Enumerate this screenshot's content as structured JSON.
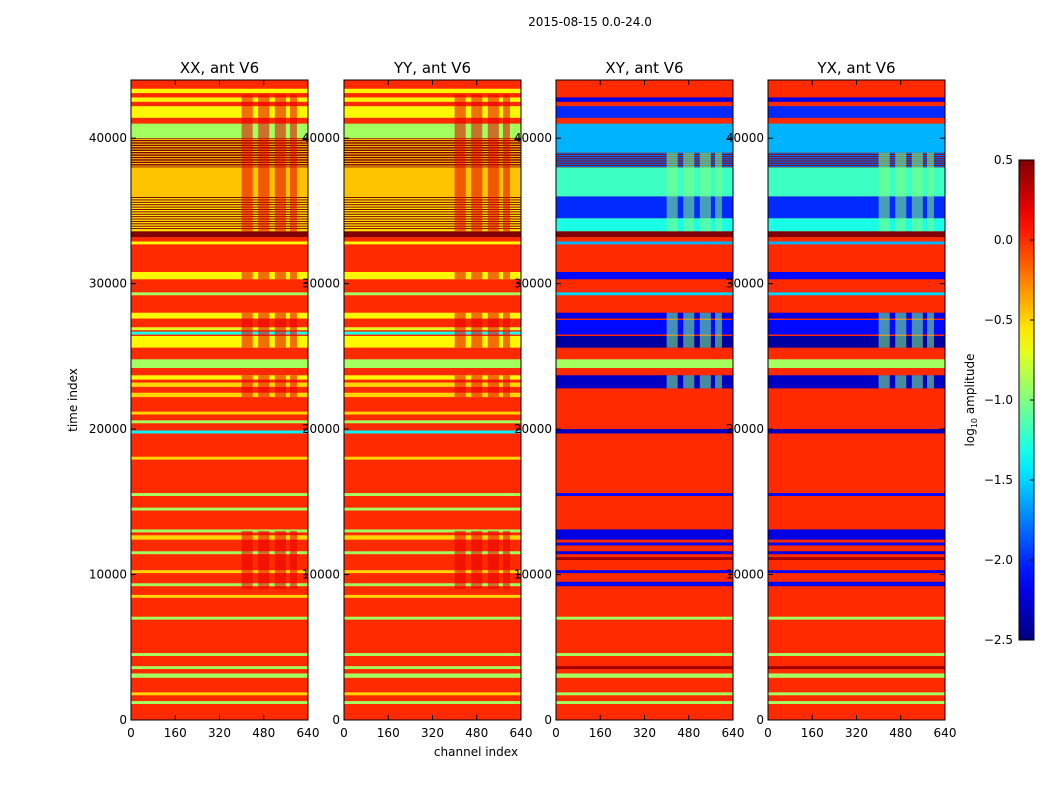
{
  "chart_data": {
    "type": "heatmap",
    "title": "2015-08-15 0.0-24.0",
    "xlabel": "channel index",
    "ylabel": "time index",
    "xlim": [
      0,
      640
    ],
    "ylim": [
      0,
      44000
    ],
    "xticks": [
      "0",
      "160",
      "320",
      "480",
      "640"
    ],
    "yticks": [
      "0",
      "10000",
      "20000",
      "30000",
      "40000"
    ],
    "background_value": 0.0,
    "colorbar": {
      "colormap": "jet",
      "range": [
        -2.5,
        0.5
      ],
      "ticks": [
        "0.5",
        "0.0",
        "−0.5",
        "−1.0",
        "−1.5",
        "−2.0",
        "−2.5"
      ],
      "tick_values": [
        0.5,
        0.0,
        -0.5,
        -1.0,
        -1.5,
        -2.0,
        -2.5
      ],
      "label": {
        "base": "log",
        "sub": "10",
        "rest": " amplitude"
      }
    },
    "band_sets": {
      "parallel": {
        "bands": [
          [
            1100,
            1300,
            -0.9
          ],
          [
            1700,
            1900,
            -0.5
          ],
          [
            2900,
            3200,
            -0.9
          ],
          [
            3500,
            3700,
            -0.9
          ],
          [
            4400,
            4600,
            -0.9
          ],
          [
            6900,
            7100,
            -0.9
          ],
          [
            8400,
            8600,
            -0.5
          ],
          [
            9200,
            9400,
            -0.9
          ],
          [
            10100,
            10300,
            -0.5
          ],
          [
            11400,
            11600,
            -0.9
          ],
          [
            12400,
            12700,
            -0.5
          ],
          [
            12900,
            13100,
            -0.9
          ],
          [
            14400,
            14600,
            -0.9
          ],
          [
            15400,
            15600,
            -0.9
          ],
          [
            17900,
            18100,
            -0.5
          ],
          [
            19700,
            19900,
            -1.4
          ],
          [
            20400,
            20600,
            -0.9
          ],
          [
            21000,
            21200,
            -0.5
          ],
          [
            22200,
            22500,
            -0.5
          ],
          [
            22900,
            23200,
            -0.5
          ],
          [
            23400,
            23700,
            -0.6
          ],
          [
            24200,
            24800,
            -0.9
          ],
          [
            25600,
            26400,
            -0.6
          ],
          [
            26500,
            26700,
            -1.3
          ],
          [
            26800,
            27000,
            -0.7
          ],
          [
            27600,
            28000,
            -0.6
          ],
          [
            29200,
            29400,
            -0.9
          ],
          [
            30300,
            30800,
            -0.6
          ],
          [
            32700,
            32900,
            -0.6
          ],
          [
            33200,
            33600,
            0.5
          ],
          [
            33600,
            36000,
            -0.55
          ],
          [
            36000,
            38000,
            -0.45
          ],
          [
            38000,
            40000,
            0.5
          ],
          [
            40000,
            41000,
            -0.9
          ],
          [
            41400,
            42200,
            -0.6
          ],
          [
            42500,
            42800,
            -0.6
          ],
          [
            43100,
            43400,
            -0.6
          ]
        ],
        "striped": [
          [
            33700,
            36000,
            14,
            0.5
          ],
          [
            38000,
            40000,
            12,
            -0.5
          ]
        ],
        "rfi_channels": [
          [
            400,
            440
          ],
          [
            460,
            500
          ],
          [
            520,
            560
          ],
          [
            575,
            600
          ]
        ],
        "rfi_times": [
          [
            25600,
            28000
          ],
          [
            30300,
            30800
          ],
          [
            33600,
            43000
          ],
          [
            22200,
            23700
          ],
          [
            9000,
            13000
          ]
        ],
        "rfi_value": 0.2
      },
      "cross": {
        "bands": [
          [
            1100,
            1300,
            -0.9
          ],
          [
            1700,
            1900,
            -0.9
          ],
          [
            2900,
            3200,
            -0.9
          ],
          [
            3500,
            3700,
            0.4
          ],
          [
            4400,
            4600,
            -0.9
          ],
          [
            6900,
            7100,
            -0.9
          ],
          [
            9200,
            9500,
            -2.1
          ],
          [
            10100,
            10300,
            -2.1
          ],
          [
            11000,
            11200,
            0.4
          ],
          [
            11400,
            11600,
            -2.2
          ],
          [
            12000,
            12200,
            -2.1
          ],
          [
            12400,
            13100,
            -2.2
          ],
          [
            15400,
            15600,
            -2.1
          ],
          [
            19700,
            20000,
            -2.3
          ],
          [
            22800,
            23700,
            -2.3
          ],
          [
            24200,
            24800,
            -0.9
          ],
          [
            25600,
            26400,
            -2.4
          ],
          [
            26500,
            27500,
            -2.1
          ],
          [
            27600,
            28000,
            -2.2
          ],
          [
            29200,
            29400,
            -1.5
          ],
          [
            30300,
            30800,
            -2.1
          ],
          [
            32700,
            32900,
            -1.6
          ],
          [
            33200,
            33600,
            0.5
          ],
          [
            33600,
            34500,
            -1.3
          ],
          [
            34500,
            36000,
            -2.0
          ],
          [
            36000,
            38000,
            -1.2
          ],
          [
            38000,
            39000,
            0.45
          ],
          [
            39000,
            41000,
            -1.6
          ],
          [
            41400,
            42200,
            -2.0
          ],
          [
            42500,
            42800,
            -2.2
          ]
        ],
        "striped": [
          [
            38000,
            39000,
            8,
            -1.8
          ]
        ],
        "rfi_channels": [
          [
            400,
            440
          ],
          [
            460,
            500
          ],
          [
            520,
            560
          ],
          [
            575,
            600
          ]
        ],
        "rfi_times": [
          [
            25600,
            28000
          ],
          [
            33600,
            39000
          ],
          [
            22800,
            23700
          ]
        ],
        "rfi_value": -1.0
      }
    },
    "panels": [
      {
        "title": "XX, ant V6",
        "band_set": "parallel"
      },
      {
        "title": "YY, ant V6",
        "band_set": "parallel"
      },
      {
        "title": "XY, ant V6",
        "band_set": "cross"
      },
      {
        "title": "YX, ant V6",
        "band_set": "cross"
      }
    ]
  }
}
